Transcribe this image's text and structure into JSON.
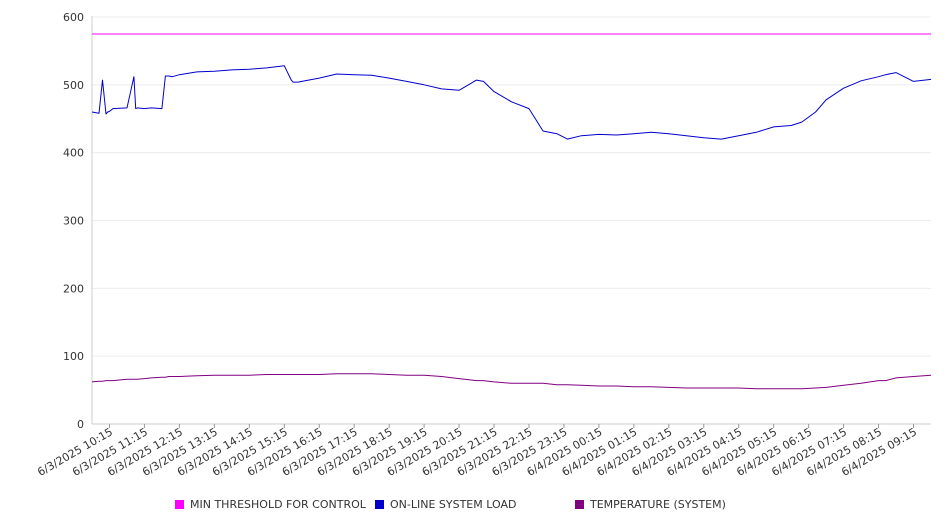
{
  "chart_data": {
    "type": "line",
    "title": "",
    "xlabel": "",
    "ylabel": "",
    "ylim": [
      0,
      600
    ],
    "y_ticks": [
      0,
      100,
      200,
      300,
      400,
      500,
      600
    ],
    "grid": true,
    "legend_position": "bottom",
    "x_tick_labels": [
      "6/3/2025 10:15",
      "6/3/2025 11:15",
      "6/3/2025 12:15",
      "6/3/2025 13:15",
      "6/3/2025 14:15",
      "6/3/2025 15:15",
      "6/3/2025 16:15",
      "6/3/2025 17:15",
      "6/3/2025 18:15",
      "6/3/2025 19:15",
      "6/3/2025 20:15",
      "6/3/2025 21:15",
      "6/3/2025 22:15",
      "6/3/2025 23:15",
      "6/4/2025 00:15",
      "6/4/2025 01:15",
      "6/4/2025 02:15",
      "6/4/2025 03:15",
      "6/4/2025 04:15",
      "6/4/2025 05:15",
      "6/4/2025 06:15",
      "6/4/2025 07:15",
      "6/4/2025 08:15",
      "6/4/2025 09:15"
    ],
    "x_hours": [
      0,
      0.2,
      0.3,
      0.4,
      0.45,
      0.5,
      0.6,
      1.0,
      1.2,
      1.25,
      1.3,
      1.5,
      1.7,
      2.0,
      2.1,
      2.2,
      2.3,
      2.5,
      3.0,
      3.5,
      4.0,
      4.5,
      5.0,
      5.5,
      5.7,
      5.75,
      5.9,
      6.0,
      6.5,
      7.0,
      7.5,
      8.0,
      8.5,
      9.0,
      9.5,
      10.0,
      10.5,
      11.0,
      11.2,
      11.5,
      12.0,
      12.5,
      12.9,
      13.3,
      13.6,
      14.0,
      14.5,
      15.0,
      15.5,
      16.0,
      16.5,
      17.0,
      17.5,
      18.0,
      18.5,
      19.0,
      19.5,
      20.0,
      20.3,
      20.7,
      21.0,
      21.5,
      22.0,
      22.5,
      22.7,
      23.0,
      23.5,
      24.0
    ],
    "series": [
      {
        "name": "MIN THRESHOLD FOR CONTROL",
        "color": "#ff00ff",
        "values": [
          575,
          575,
          575,
          575,
          575,
          575,
          575,
          575,
          575,
          575,
          575,
          575,
          575,
          575,
          575,
          575,
          575,
          575,
          575,
          575,
          575,
          575,
          575,
          575,
          575,
          575,
          575,
          575,
          575,
          575,
          575,
          575,
          575,
          575,
          575,
          575,
          575,
          575,
          575,
          575,
          575,
          575,
          575,
          575,
          575,
          575,
          575,
          575,
          575,
          575,
          575,
          575,
          575,
          575,
          575,
          575,
          575,
          575,
          575,
          575,
          575,
          575,
          575,
          575,
          575,
          575,
          575,
          575
        ]
      },
      {
        "name": "ON-LINE SYSTEM LOAD",
        "color": "#0000cc",
        "values": [
          460,
          458,
          507,
          457,
          460,
          461,
          465,
          466,
          512,
          465,
          466,
          465,
          466,
          465,
          513,
          513,
          512,
          515,
          519,
          520,
          522,
          523,
          525,
          528,
          507,
          504,
          504,
          505,
          510,
          516,
          515,
          514,
          510,
          505,
          500,
          494,
          492,
          507,
          505,
          490,
          475,
          465,
          432,
          428,
          420,
          425,
          427,
          426,
          428,
          430,
          428,
          425,
          422,
          420,
          425,
          430,
          438,
          440,
          445,
          460,
          478,
          495,
          506,
          512,
          515,
          518,
          505,
          508
        ]
      },
      {
        "name": "TEMPERATURE (SYSTEM)",
        "color": "#800080",
        "values": [
          62,
          63,
          63,
          64,
          64,
          64,
          64,
          66,
          66,
          66,
          66,
          67,
          68,
          69,
          69,
          70,
          70,
          70,
          71,
          72,
          72,
          72,
          73,
          73,
          73,
          73,
          73,
          73,
          73,
          74,
          74,
          74,
          73,
          72,
          72,
          70,
          67,
          64,
          64,
          62,
          60,
          60,
          60,
          58,
          58,
          57,
          56,
          56,
          55,
          55,
          54,
          53,
          53,
          53,
          53,
          52,
          52,
          52,
          52,
          53,
          54,
          57,
          60,
          64,
          64,
          68,
          70,
          72
        ]
      }
    ]
  }
}
